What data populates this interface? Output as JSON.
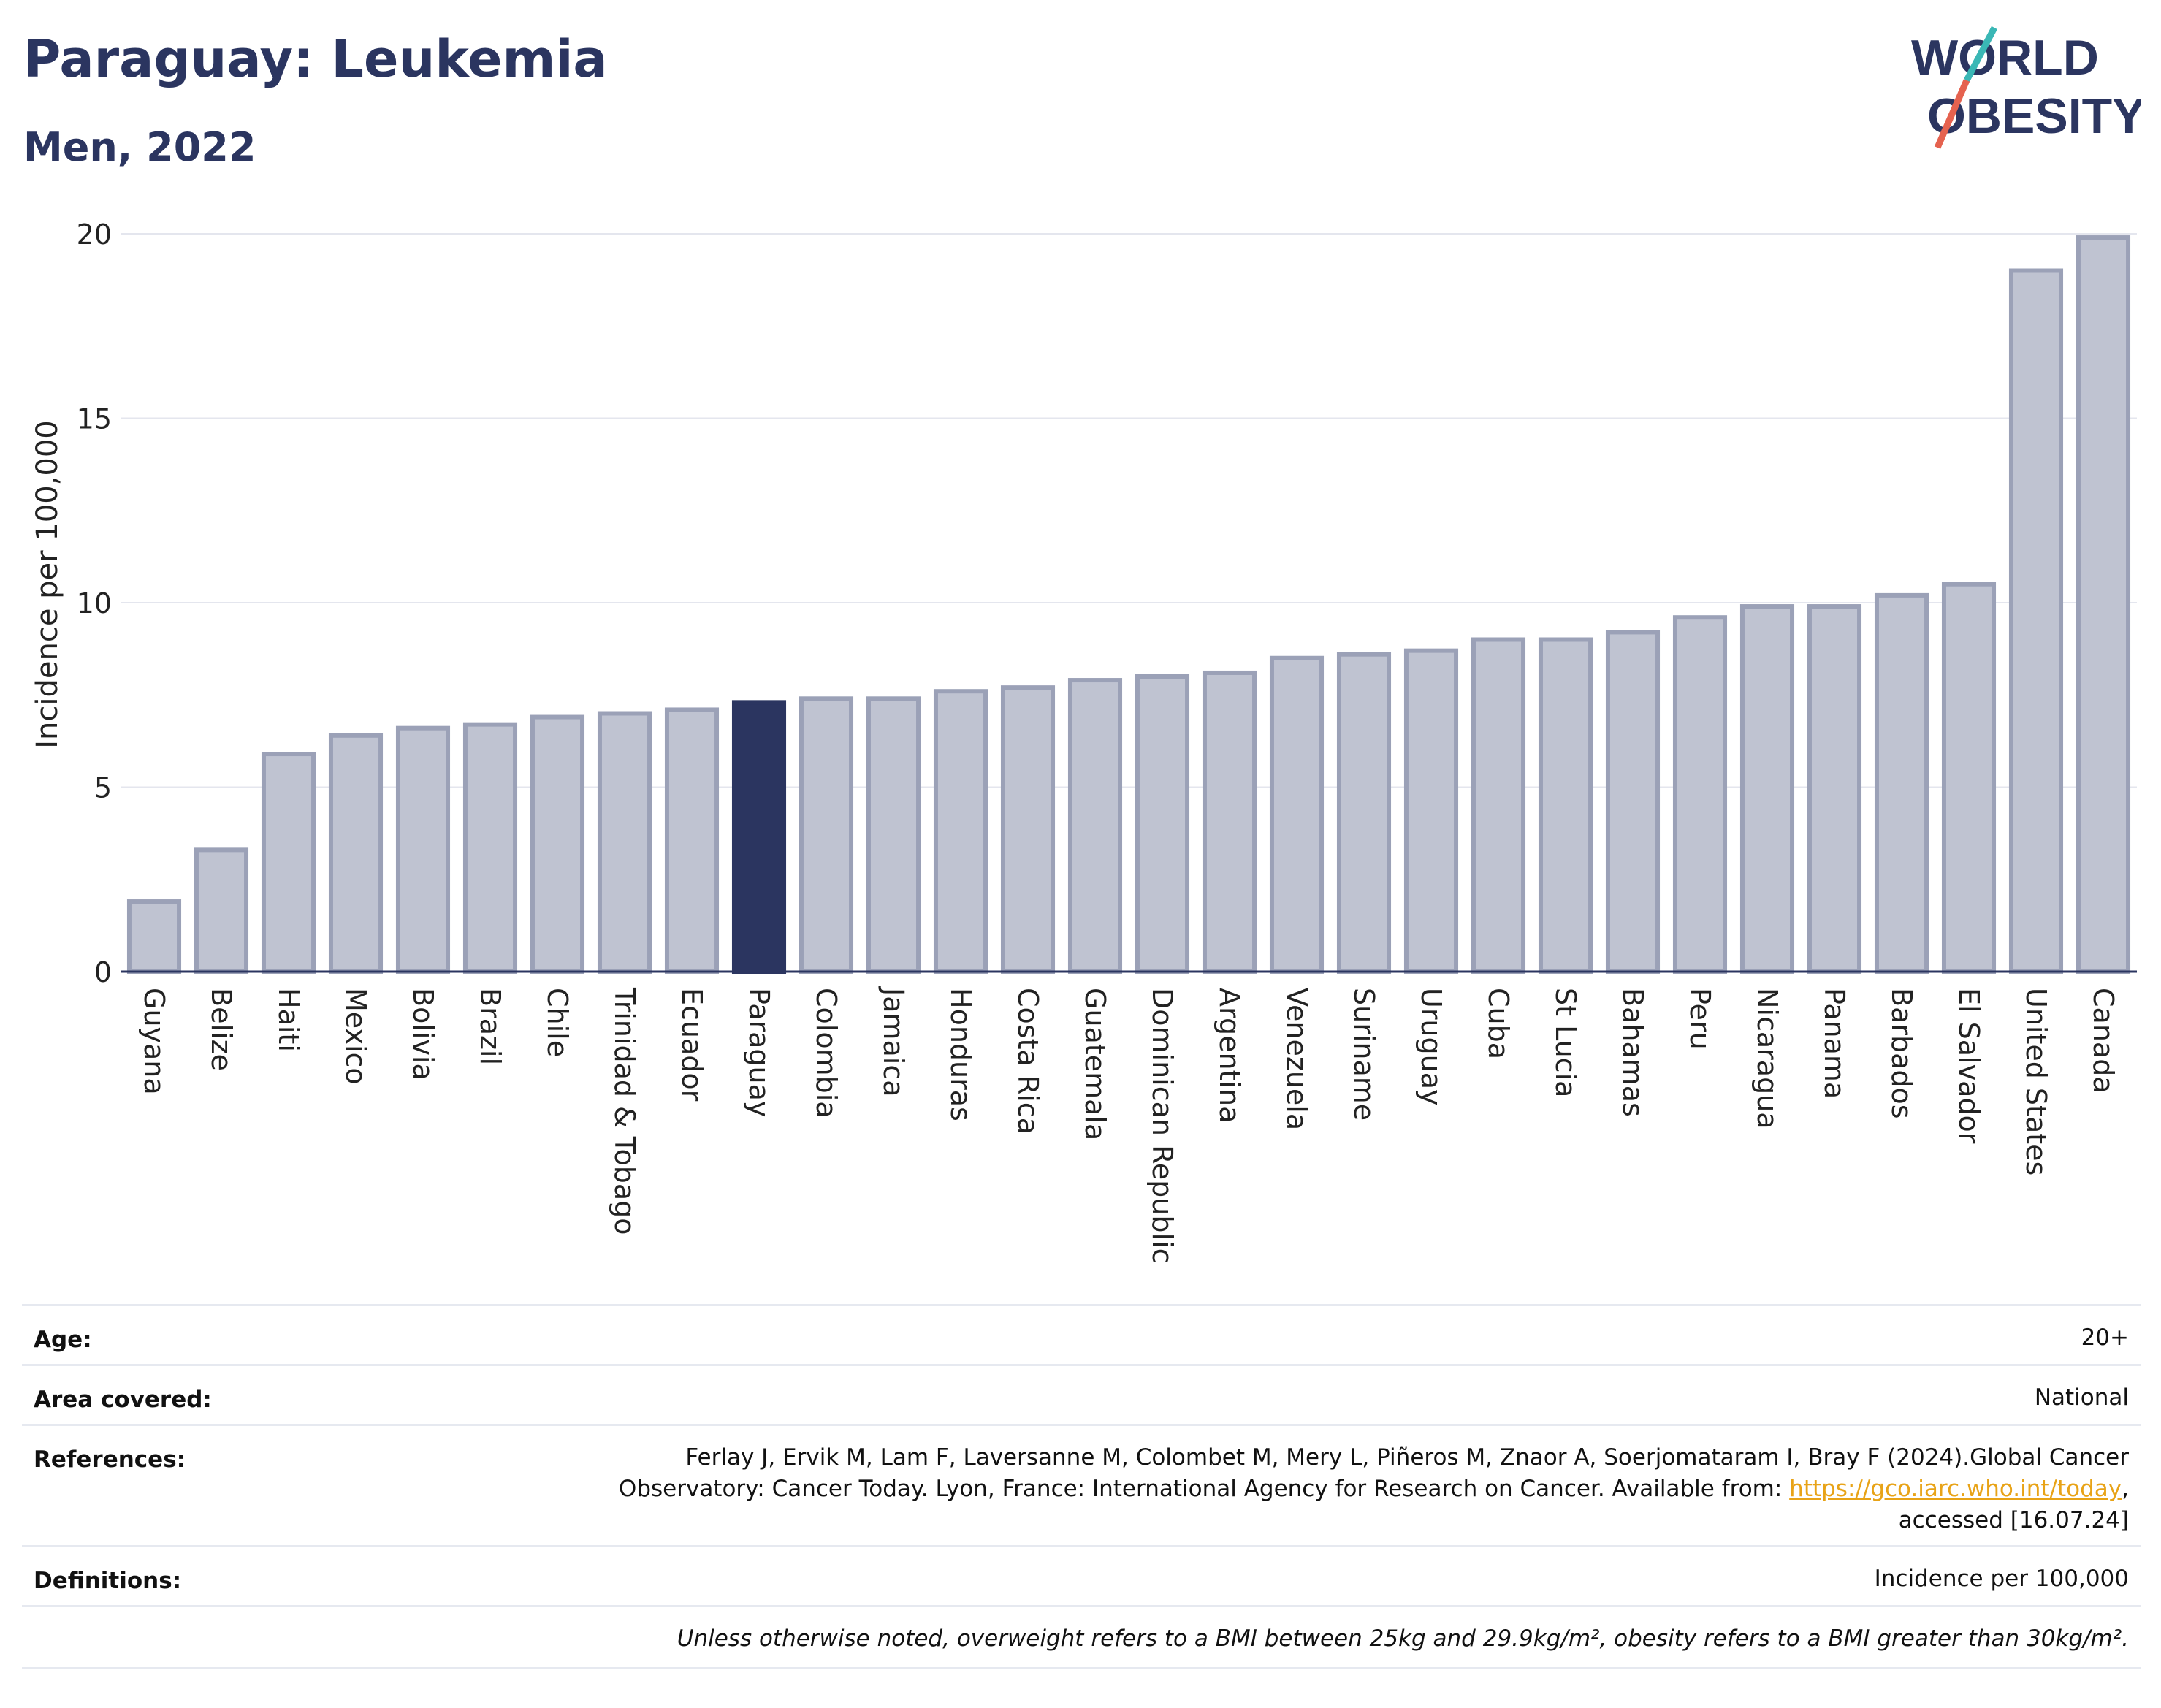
{
  "header": {
    "title": "Paraguay: Leukemia",
    "subtitle": "Men, 2022"
  },
  "logo": {
    "line1": "WORLD",
    "line2": "OBESITY",
    "accent_colors": [
      "#3ab7b5",
      "#e5624f"
    ]
  },
  "colors": {
    "bar": "#bfc3d1",
    "bar_stroke": "#9ba1b7",
    "highlight": "#2b3560",
    "grid": "#e4e6ee",
    "axis": "#2b3560"
  },
  "chart_data": {
    "type": "bar",
    "ylabel": "Incidence per 100,000",
    "ylim": [
      0,
      20
    ],
    "yticks": [
      0,
      5,
      10,
      15,
      20
    ],
    "grid": true,
    "highlight": "Paraguay",
    "categories": [
      "Guyana",
      "Belize",
      "Haiti",
      "Mexico",
      "Bolivia",
      "Brazil",
      "Chile",
      "Trinidad & Tobago",
      "Ecuador",
      "Paraguay",
      "Colombia",
      "Jamaica",
      "Honduras",
      "Costa Rica",
      "Guatemala",
      "Dominican Republic",
      "Argentina",
      "Venezuela",
      "Suriname",
      "Uruguay",
      "Cuba",
      "St Lucia",
      "Bahamas",
      "Peru",
      "Nicaragua",
      "Panama",
      "Barbados",
      "El Salvador",
      "United States",
      "Canada"
    ],
    "values": [
      1.9,
      3.3,
      5.9,
      6.4,
      6.6,
      6.7,
      6.9,
      7.0,
      7.1,
      7.3,
      7.4,
      7.4,
      7.6,
      7.7,
      7.9,
      8.0,
      8.1,
      8.5,
      8.6,
      8.7,
      9.0,
      9.0,
      9.2,
      9.6,
      9.9,
      9.9,
      10.2,
      10.5,
      19.0,
      19.9
    ]
  },
  "info": {
    "age_label": "Age:",
    "age_value": "20+",
    "area_label": "Area covered:",
    "area_value": "National",
    "references_label": "References:",
    "references_text_1": "Ferlay J, Ervik M, Lam F, Laversanne M, Colombet M, Mery L, Piñeros M, Znaor A, Soerjomataram I, Bray F (2024).Global Cancer",
    "references_text_2": "Observatory: Cancer Today. Lyon, France: International Agency for Research on Cancer. Available from: ",
    "references_link": "https://gco.iarc.who.int/today",
    "references_text_3": "accessed [16.07.24]",
    "definitions_label": "Definitions:",
    "definitions_value": "Incidence per 100,000",
    "note": "Unless otherwise noted, overweight refers to a BMI between 25kg and 29.9kg/m², obesity refers to a BMI greater than 30kg/m²."
  }
}
